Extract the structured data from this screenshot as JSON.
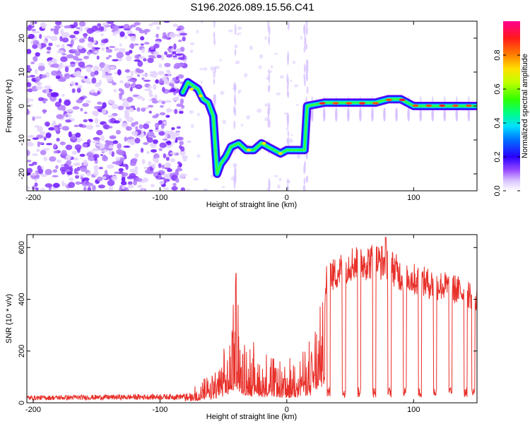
{
  "title": "S196.2026.089.15.56.C41",
  "chart_data": [
    {
      "type": "heatmap",
      "xlabel": "Height of straight line (km)",
      "ylabel": "Frequency (Hz)",
      "xlim": [
        -205,
        150
      ],
      "ylim": [
        -25,
        25
      ],
      "xticks": [
        -200,
        -100,
        0,
        100
      ],
      "xtick_labels": [
        "-200",
        "-100",
        "0",
        "100"
      ],
      "yticks": [
        -20,
        -10,
        0,
        10,
        20
      ],
      "ytick_labels": [
        "-20",
        "-10",
        "0",
        "10",
        "20"
      ],
      "colorbar": {
        "label": "Normalized spectral amplitude",
        "range": [
          0.0,
          1.0
        ],
        "ticks": [
          0.0,
          0.2,
          0.4,
          0.6,
          0.8
        ],
        "tick_labels": [
          "0.0",
          "0.2",
          "0.4",
          "0.6",
          "0.8"
        ]
      },
      "ridge": [
        {
          "x": -82,
          "y": 4
        },
        {
          "x": -78,
          "y": 7
        },
        {
          "x": -74,
          "y": 6
        },
        {
          "x": -70,
          "y": 5
        },
        {
          "x": -66,
          "y": 2
        },
        {
          "x": -62,
          "y": 1
        },
        {
          "x": -58,
          "y": -3
        },
        {
          "x": -55,
          "y": -20
        },
        {
          "x": -52,
          "y": -17
        },
        {
          "x": -48,
          "y": -15
        },
        {
          "x": -44,
          "y": -12
        },
        {
          "x": -38,
          "y": -11
        },
        {
          "x": -32,
          "y": -13
        },
        {
          "x": -26,
          "y": -13
        },
        {
          "x": -20,
          "y": -11
        },
        {
          "x": -15,
          "y": -12
        },
        {
          "x": -10,
          "y": -13
        },
        {
          "x": -5,
          "y": -14
        },
        {
          "x": 0,
          "y": -13
        },
        {
          "x": 5,
          "y": -13
        },
        {
          "x": 14,
          "y": -13
        },
        {
          "x": 16,
          "y": 0
        },
        {
          "x": 30,
          "y": 1
        },
        {
          "x": 50,
          "y": 1
        },
        {
          "x": 70,
          "y": 1
        },
        {
          "x": 80,
          "y": 2
        },
        {
          "x": 90,
          "y": 2
        },
        {
          "x": 100,
          "y": 0
        },
        {
          "x": 110,
          "y": 0
        },
        {
          "x": 130,
          "y": 0
        },
        {
          "x": 150,
          "y": 0
        }
      ]
    },
    {
      "type": "line",
      "xlabel": "Height of straight line (km)",
      "ylabel": "SNR (10 * v/v)",
      "xlim": [
        -205,
        150
      ],
      "ylim": [
        0,
        650
      ],
      "xticks": [
        -200,
        -100,
        0,
        100
      ],
      "xtick_labels": [
        "-200",
        "-100",
        "0",
        "100"
      ],
      "yticks": [
        0,
        200,
        400,
        600
      ],
      "ytick_labels": [
        "0",
        "200",
        "400",
        "600"
      ],
      "series": [
        {
          "name": "SNR",
          "color": "#e8302a",
          "envelope_x": [
            -205,
            -80,
            -70,
            -60,
            -45,
            -40,
            -36,
            -30,
            -20,
            -10,
            0,
            10,
            20,
            28,
            32,
            36,
            50,
            70,
            80,
            90,
            110,
            130,
            150
          ],
          "envelope_y": [
            20,
            25,
            40,
            60,
            130,
            300,
            150,
            130,
            110,
            100,
            80,
            110,
            140,
            230,
            560,
            520,
            570,
            580,
            570,
            520,
            490,
            470,
            430
          ],
          "peaks_x": [
            -40,
            78
          ],
          "peaks_y": [
            500,
            640
          ]
        }
      ]
    }
  ]
}
